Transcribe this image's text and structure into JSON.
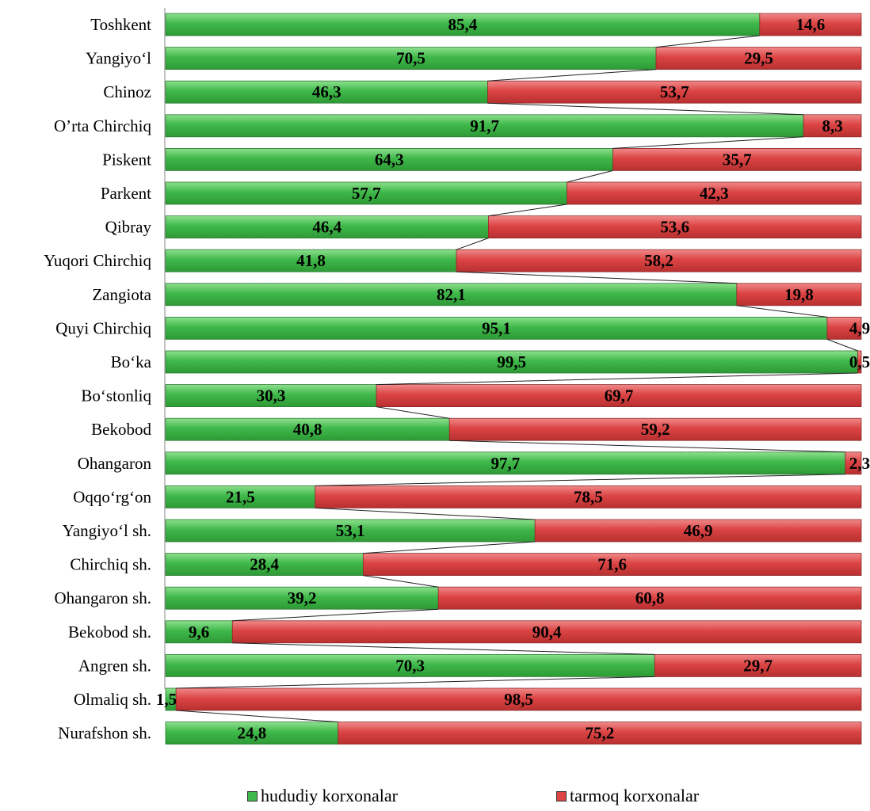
{
  "chart_data": {
    "type": "bar",
    "orientation": "horizontal",
    "stacked": "100%",
    "categories": [
      "Toshkent",
      "Yangiyo‘l",
      "Chinoz",
      "O’rta Chirchiq",
      "Piskent",
      "Parkent",
      "Qibray",
      "Yuqori Chirchiq",
      "Zangiota",
      "Quyi Chirchiq",
      "Bo‘ka",
      "Bo‘stonliq",
      "Bekobod",
      "Ohangaron",
      "Oqqo‘rg‘on",
      "Yangiyo‘l sh.",
      "Chirchiq sh.",
      "Ohangaron sh.",
      "Bekobod sh.",
      "Angren sh.",
      "Olmaliq sh.",
      "Nurafshon sh."
    ],
    "series": [
      {
        "name": "hududiy korxonalar",
        "color": "#3fb84a",
        "values": [
          85.4,
          70.5,
          46.3,
          91.7,
          64.3,
          57.7,
          46.4,
          41.8,
          82.1,
          95.1,
          99.5,
          30.3,
          40.8,
          97.7,
          21.5,
          53.1,
          28.4,
          39.2,
          9.6,
          70.3,
          1.5,
          24.8
        ],
        "labels": [
          "85,4",
          "70,5",
          "46,3",
          "91,7",
          "64,3",
          "57,7",
          "46,4",
          "41,8",
          "82,1",
          "95,1",
          "99,5",
          "30,3",
          "40,8",
          "97,7",
          "21,5",
          "53,1",
          "28,4",
          "39,2",
          "9,6",
          "70,3",
          "1,5",
          "24,8"
        ]
      },
      {
        "name": "tarmoq korxonalar",
        "color": "#dc4444",
        "values": [
          14.6,
          29.5,
          53.7,
          8.3,
          35.7,
          42.3,
          53.6,
          58.2,
          19.8,
          4.9,
          0.5,
          69.7,
          59.2,
          2.3,
          78.5,
          46.9,
          71.6,
          60.8,
          90.4,
          29.7,
          98.5,
          75.2
        ],
        "labels": [
          "14,6",
          "29,5",
          "53,7",
          "8,3",
          "35,7",
          "42,3",
          "53,6",
          "58,2",
          "19,8",
          "4,9",
          "0,5",
          "69,7",
          "59,2",
          "2,3",
          "78,5",
          "46,9",
          "71,6",
          "60,8",
          "90,4",
          "29,7",
          "98,5",
          "75,2"
        ]
      }
    ],
    "xlim": [
      0,
      100
    ],
    "series_lines": true,
    "legend_position": "bottom",
    "grid": false
  }
}
